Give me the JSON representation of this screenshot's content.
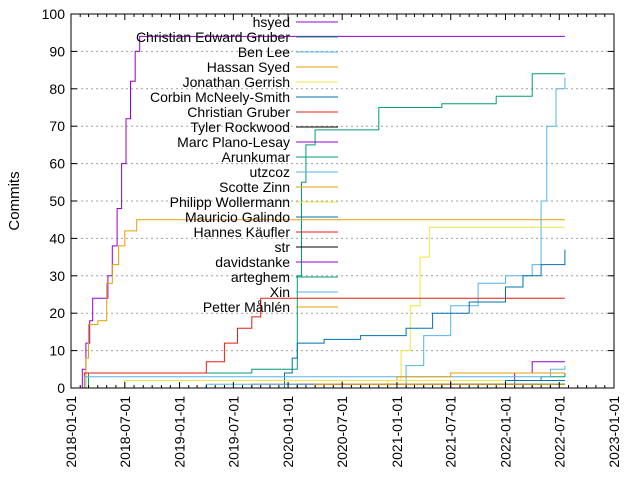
{
  "chart_data": {
    "type": "line",
    "ylabel": "Commits",
    "xlabel": "",
    "ylim": [
      0,
      100
    ],
    "xlim": [
      "2018-01-01",
      "2023-01-01"
    ],
    "grid": true,
    "legend_position": "top-right",
    "y_ticks": [
      0,
      10,
      20,
      30,
      40,
      50,
      60,
      70,
      80,
      90,
      100
    ],
    "x_ticks": [
      "2018-01-01",
      "2018-07-01",
      "2019-01-01",
      "2019-07-01",
      "2020-01-01",
      "2020-07-01",
      "2021-01-01",
      "2021-07-01",
      "2022-01-01",
      "2022-07-01",
      "2023-01-01"
    ],
    "series": [
      {
        "name": "hsyed",
        "color": "#9400d3",
        "points": [
          [
            "2018-02-01",
            0
          ],
          [
            "2018-02-08",
            5
          ],
          [
            "2018-02-20",
            12
          ],
          [
            "2018-03-05",
            18
          ],
          [
            "2018-03-15",
            24
          ],
          [
            "2018-04-20",
            24
          ],
          [
            "2018-05-05",
            30
          ],
          [
            "2018-05-20",
            38
          ],
          [
            "2018-06-05",
            48
          ],
          [
            "2018-06-20",
            60
          ],
          [
            "2018-07-05",
            72
          ],
          [
            "2018-07-20",
            82
          ],
          [
            "2018-08-05",
            90
          ],
          [
            "2018-08-20",
            94
          ],
          [
            "2022-07-20",
            94
          ]
        ]
      },
      {
        "name": "Christian Edward Gruber",
        "color": "#009e73",
        "points": [
          [
            "2018-02-01",
            0
          ],
          [
            "2018-03-01",
            4
          ],
          [
            "2019-07-01",
            4
          ],
          [
            "2019-09-01",
            5
          ],
          [
            "2020-01-15",
            5
          ],
          [
            "2020-02-01",
            30
          ],
          [
            "2020-02-15",
            55
          ],
          [
            "2020-03-01",
            65
          ],
          [
            "2020-04-01",
            69
          ],
          [
            "2020-09-01",
            69
          ],
          [
            "2020-11-01",
            75
          ],
          [
            "2021-06-01",
            76
          ],
          [
            "2021-12-01",
            78
          ],
          [
            "2022-04-01",
            84
          ],
          [
            "2022-07-20",
            84
          ]
        ]
      },
      {
        "name": "Ben Lee",
        "color": "#56b4e9",
        "points": [
          [
            "2021-01-01",
            0
          ],
          [
            "2021-02-01",
            6
          ],
          [
            "2021-04-01",
            14
          ],
          [
            "2021-07-01",
            22
          ],
          [
            "2021-10-01",
            28
          ],
          [
            "2022-01-01",
            30
          ],
          [
            "2022-04-01",
            33
          ],
          [
            "2022-05-01",
            50
          ],
          [
            "2022-05-20",
            70
          ],
          [
            "2022-06-20",
            80
          ],
          [
            "2022-07-20",
            83
          ]
        ]
      },
      {
        "name": "Hassan Syed",
        "color": "#e69f00",
        "points": [
          [
            "2018-02-01",
            0
          ],
          [
            "2018-02-20",
            8
          ],
          [
            "2018-03-01",
            17
          ],
          [
            "2018-04-01",
            18
          ],
          [
            "2018-05-01",
            28
          ],
          [
            "2018-05-20",
            33
          ],
          [
            "2018-06-10",
            38
          ],
          [
            "2018-07-01",
            42
          ],
          [
            "2018-08-10",
            45
          ],
          [
            "2022-07-20",
            45
          ]
        ]
      },
      {
        "name": "Jonathan Gerrish",
        "color": "#f0e442",
        "points": [
          [
            "2020-10-01",
            0
          ],
          [
            "2020-12-01",
            2
          ],
          [
            "2021-01-15",
            10
          ],
          [
            "2021-02-15",
            22
          ],
          [
            "2021-03-20",
            35
          ],
          [
            "2021-04-20",
            43
          ],
          [
            "2022-07-20",
            43
          ]
        ]
      },
      {
        "name": "Corbin McNeely-Smith",
        "color": "#0072b2",
        "points": [
          [
            "2019-12-01",
            0
          ],
          [
            "2019-12-20",
            4
          ],
          [
            "2020-01-15",
            8
          ],
          [
            "2020-02-01",
            12
          ],
          [
            "2020-05-01",
            13
          ],
          [
            "2020-09-01",
            14
          ],
          [
            "2021-02-01",
            16
          ],
          [
            "2021-05-01",
            20
          ],
          [
            "2021-09-01",
            23
          ],
          [
            "2022-01-01",
            27
          ],
          [
            "2022-03-01",
            30
          ],
          [
            "2022-05-01",
            33
          ],
          [
            "2022-07-20",
            37
          ]
        ]
      },
      {
        "name": "Christian Gruber",
        "color": "#e51e10",
        "points": [
          [
            "2018-02-01",
            0
          ],
          [
            "2018-02-15",
            4
          ],
          [
            "2019-02-01",
            4
          ],
          [
            "2019-04-01",
            7
          ],
          [
            "2019-06-01",
            12
          ],
          [
            "2019-07-15",
            16
          ],
          [
            "2019-09-01",
            19
          ],
          [
            "2019-10-01",
            24
          ],
          [
            "2022-07-20",
            24
          ]
        ]
      },
      {
        "name": "Tyler Rockwood",
        "color": "#000000",
        "points": [
          [
            "2020-01-01",
            0
          ],
          [
            "2020-02-01",
            1
          ],
          [
            "2022-07-20",
            1
          ]
        ]
      },
      {
        "name": "Marc Plano-Lesay",
        "color": "#9400d3",
        "points": [
          [
            "2021-06-01",
            0
          ],
          [
            "2021-07-01",
            2
          ],
          [
            "2022-02-01",
            4
          ],
          [
            "2022-04-01",
            7
          ],
          [
            "2022-07-20",
            7
          ]
        ]
      },
      {
        "name": "Arunkumar",
        "color": "#009e73",
        "points": [
          [
            "2021-09-01",
            0
          ],
          [
            "2021-10-01",
            1
          ],
          [
            "2022-02-01",
            2
          ],
          [
            "2022-05-01",
            3
          ],
          [
            "2022-07-20",
            4
          ]
        ]
      },
      {
        "name": "utzcoz",
        "color": "#56b4e9",
        "points": [
          [
            "2018-02-01",
            0
          ],
          [
            "2018-02-15",
            3
          ],
          [
            "2022-04-01",
            3
          ],
          [
            "2022-06-01",
            5
          ],
          [
            "2022-07-20",
            6
          ]
        ]
      },
      {
        "name": "Scotte Zinn",
        "color": "#e69f00",
        "points": [
          [
            "2020-06-01",
            0
          ],
          [
            "2020-07-01",
            2
          ],
          [
            "2021-01-01",
            3
          ],
          [
            "2021-07-01",
            4
          ],
          [
            "2022-07-20",
            4
          ]
        ]
      },
      {
        "name": "Philipp Wollermann",
        "color": "#f0e442",
        "points": [
          [
            "2018-06-01",
            0
          ],
          [
            "2018-07-01",
            2
          ],
          [
            "2022-07-20",
            2
          ]
        ]
      },
      {
        "name": "Mauricio Galindo",
        "color": "#0072b2",
        "points": [
          [
            "2021-03-01",
            0
          ],
          [
            "2021-04-01",
            1
          ],
          [
            "2022-01-01",
            2
          ],
          [
            "2022-07-20",
            2
          ]
        ]
      },
      {
        "name": "Hannes Käufler",
        "color": "#e51e10",
        "points": [
          [
            "2019-08-01",
            0
          ],
          [
            "2019-09-01",
            1
          ],
          [
            "2022-07-20",
            1
          ]
        ]
      },
      {
        "name": "str",
        "color": "#000000",
        "points": [
          [
            "2021-05-01",
            0
          ],
          [
            "2021-06-01",
            1
          ],
          [
            "2022-07-20",
            1
          ]
        ]
      },
      {
        "name": "davidstanke",
        "color": "#9400d3",
        "points": [
          [
            "2022-05-01",
            0
          ],
          [
            "2022-06-01",
            1
          ],
          [
            "2022-07-20",
            1
          ]
        ]
      },
      {
        "name": "arteghem",
        "color": "#009e73",
        "points": [
          [
            "2022-03-01",
            0
          ],
          [
            "2022-04-01",
            1
          ],
          [
            "2022-07-20",
            1
          ]
        ]
      },
      {
        "name": "Xin",
        "color": "#56b4e9",
        "points": [
          [
            "2019-03-01",
            0
          ],
          [
            "2019-04-01",
            1
          ],
          [
            "2022-07-20",
            1
          ]
        ]
      },
      {
        "name": "Petter Måhlén",
        "color": "#e69f00",
        "points": [
          [
            "2020-03-01",
            0
          ],
          [
            "2020-04-01",
            1
          ],
          [
            "2022-07-20",
            1
          ]
        ]
      }
    ]
  }
}
